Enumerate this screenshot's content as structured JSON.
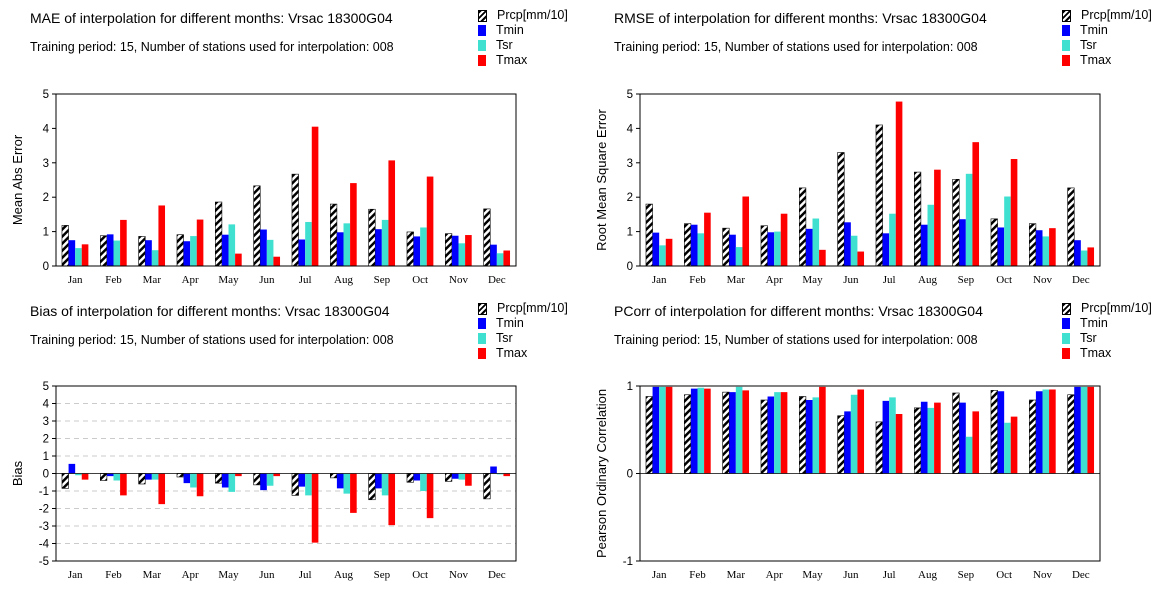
{
  "colors": {
    "prcp": "#000000",
    "tmin": "#0000ff",
    "tsr": "#40e0d0",
    "tmax": "#ff0000"
  },
  "legend": [
    "Prcp[mm/10]",
    "Tmin",
    "Tsr",
    "Tmax"
  ],
  "panels": [
    {
      "title": "MAE of interpolation for different months: Vrsac  18300G04",
      "subtitle": "Training period: 15, Number of stations used for interpolation: 008"
    },
    {
      "title": "RMSE of interpolation for different months: Vrsac  18300G04",
      "subtitle": "Training period: 15, Number of stations used for interpolation: 008"
    },
    {
      "title": "Bias of interpolation for different months: Vrsac  18300G04",
      "subtitle": "Training period: 15, Number of stations used for interpolation: 008"
    },
    {
      "title": "PCorr of interpolation for different months: Vrsac  18300G04",
      "subtitle": "Training period: 15, Number of stations used for interpolation: 008"
    }
  ],
  "chart_data": [
    {
      "type": "bar",
      "ylabel": "Mean Abs Error",
      "ylim": [
        0,
        5
      ],
      "yticks": [
        "0",
        "1",
        "2",
        "3",
        "4",
        "5"
      ],
      "grid": false,
      "categories": [
        "Jan",
        "Feb",
        "Mar",
        "Apr",
        "May",
        "Jun",
        "Jul",
        "Aug",
        "Sep",
        "Oct",
        "Nov",
        "Dec"
      ],
      "series": [
        {
          "name": "Prcp[mm/10]",
          "values": [
            1.18,
            0.88,
            0.86,
            0.91,
            1.86,
            2.33,
            2.67,
            1.8,
            1.65,
            0.99,
            0.94,
            1.66
          ]
        },
        {
          "name": "Tmin",
          "values": [
            0.75,
            0.92,
            0.75,
            0.72,
            0.91,
            1.06,
            0.77,
            0.98,
            1.07,
            0.86,
            0.88,
            0.62
          ]
        },
        {
          "name": "Tsr",
          "values": [
            0.52,
            0.74,
            0.46,
            0.87,
            1.21,
            0.76,
            1.28,
            1.24,
            1.34,
            1.12,
            0.66,
            0.37
          ]
        },
        {
          "name": "Tmax",
          "values": [
            0.63,
            1.34,
            1.76,
            1.35,
            0.36,
            0.27,
            4.05,
            2.41,
            3.07,
            2.6,
            0.9,
            0.45
          ]
        }
      ]
    },
    {
      "type": "bar",
      "ylabel": "Root Mean Square Error",
      "ylim": [
        0,
        5
      ],
      "yticks": [
        "0",
        "1",
        "2",
        "3",
        "4",
        "5"
      ],
      "grid": false,
      "categories": [
        "Jan",
        "Feb",
        "Mar",
        "Apr",
        "May",
        "Jun",
        "Jul",
        "Aug",
        "Sep",
        "Oct",
        "Nov",
        "Dec"
      ],
      "series": [
        {
          "name": "Prcp[mm/10]",
          "values": [
            1.8,
            1.23,
            1.1,
            1.17,
            2.27,
            3.3,
            4.1,
            2.73,
            2.52,
            1.37,
            1.23,
            2.27
          ]
        },
        {
          "name": "Tmin",
          "values": [
            0.97,
            1.2,
            0.91,
            0.98,
            1.08,
            1.27,
            0.95,
            1.2,
            1.36,
            1.12,
            1.04,
            0.75
          ]
        },
        {
          "name": "Tsr",
          "values": [
            0.6,
            0.95,
            0.55,
            1.0,
            1.38,
            0.88,
            1.52,
            1.78,
            2.68,
            2.02,
            0.86,
            0.45
          ]
        },
        {
          "name": "Tmax",
          "values": [
            0.79,
            1.55,
            2.02,
            1.52,
            0.47,
            0.42,
            4.78,
            2.8,
            3.6,
            3.11,
            1.1,
            0.54
          ]
        }
      ]
    },
    {
      "type": "bar",
      "ylabel": "Bias",
      "ylim": [
        -5,
        5
      ],
      "yticks": [
        "-5",
        "-4",
        "-3",
        "-2",
        "-1",
        "0",
        "1",
        "2",
        "3",
        "4",
        "5"
      ],
      "grid": true,
      "categories": [
        "Jan",
        "Feb",
        "Mar",
        "Apr",
        "May",
        "Jun",
        "Jul",
        "Aug",
        "Sep",
        "Oct",
        "Nov",
        "Dec"
      ],
      "series": [
        {
          "name": "Prcp[mm/10]",
          "values": [
            -0.85,
            -0.4,
            -0.6,
            -0.2,
            -0.55,
            -0.65,
            -1.25,
            -0.25,
            -1.5,
            -0.5,
            -0.45,
            -1.45
          ]
        },
        {
          "name": "Tmin",
          "values": [
            0.55,
            -0.15,
            -0.35,
            -0.55,
            -0.8,
            -0.95,
            -0.75,
            -0.85,
            -0.85,
            -0.4,
            -0.3,
            0.4
          ]
        },
        {
          "name": "Tsr",
          "values": [
            -0.1,
            -0.4,
            -0.35,
            -0.8,
            -1.05,
            -0.7,
            -1.25,
            -1.15,
            -1.25,
            -1.0,
            -0.35,
            -0.05
          ]
        },
        {
          "name": "Tmax",
          "values": [
            -0.35,
            -1.25,
            -1.75,
            -1.3,
            -0.15,
            -0.15,
            -3.95,
            -2.25,
            -2.95,
            -2.55,
            -0.7,
            -0.15
          ]
        }
      ]
    },
    {
      "type": "bar",
      "ylabel": "Pearson Ordinary Correlation",
      "ylim": [
        -1,
        1
      ],
      "yticks": [
        "-1",
        "0",
        "1"
      ],
      "grid": true,
      "categories": [
        "Jan",
        "Feb",
        "Mar",
        "Apr",
        "May",
        "Jun",
        "Jul",
        "Aug",
        "Sep",
        "Oct",
        "Nov",
        "Dec"
      ],
      "series": [
        {
          "name": "Prcp[mm/10]",
          "values": [
            0.88,
            0.9,
            0.93,
            0.84,
            0.88,
            0.66,
            0.59,
            0.75,
            0.92,
            0.95,
            0.84,
            0.9
          ]
        },
        {
          "name": "Tmin",
          "values": [
            0.99,
            0.97,
            0.93,
            0.88,
            0.84,
            0.71,
            0.83,
            0.82,
            0.81,
            0.94,
            0.94,
            0.99
          ]
        },
        {
          "name": "Tsr",
          "values": [
            0.99,
            0.98,
            0.99,
            0.93,
            0.87,
            0.9,
            0.87,
            0.75,
            0.42,
            0.58,
            0.96,
            0.99
          ]
        },
        {
          "name": "Tmax",
          "values": [
            0.99,
            0.97,
            0.95,
            0.93,
            0.99,
            0.96,
            0.68,
            0.81,
            0.71,
            0.65,
            0.96,
            0.99
          ]
        }
      ]
    }
  ]
}
